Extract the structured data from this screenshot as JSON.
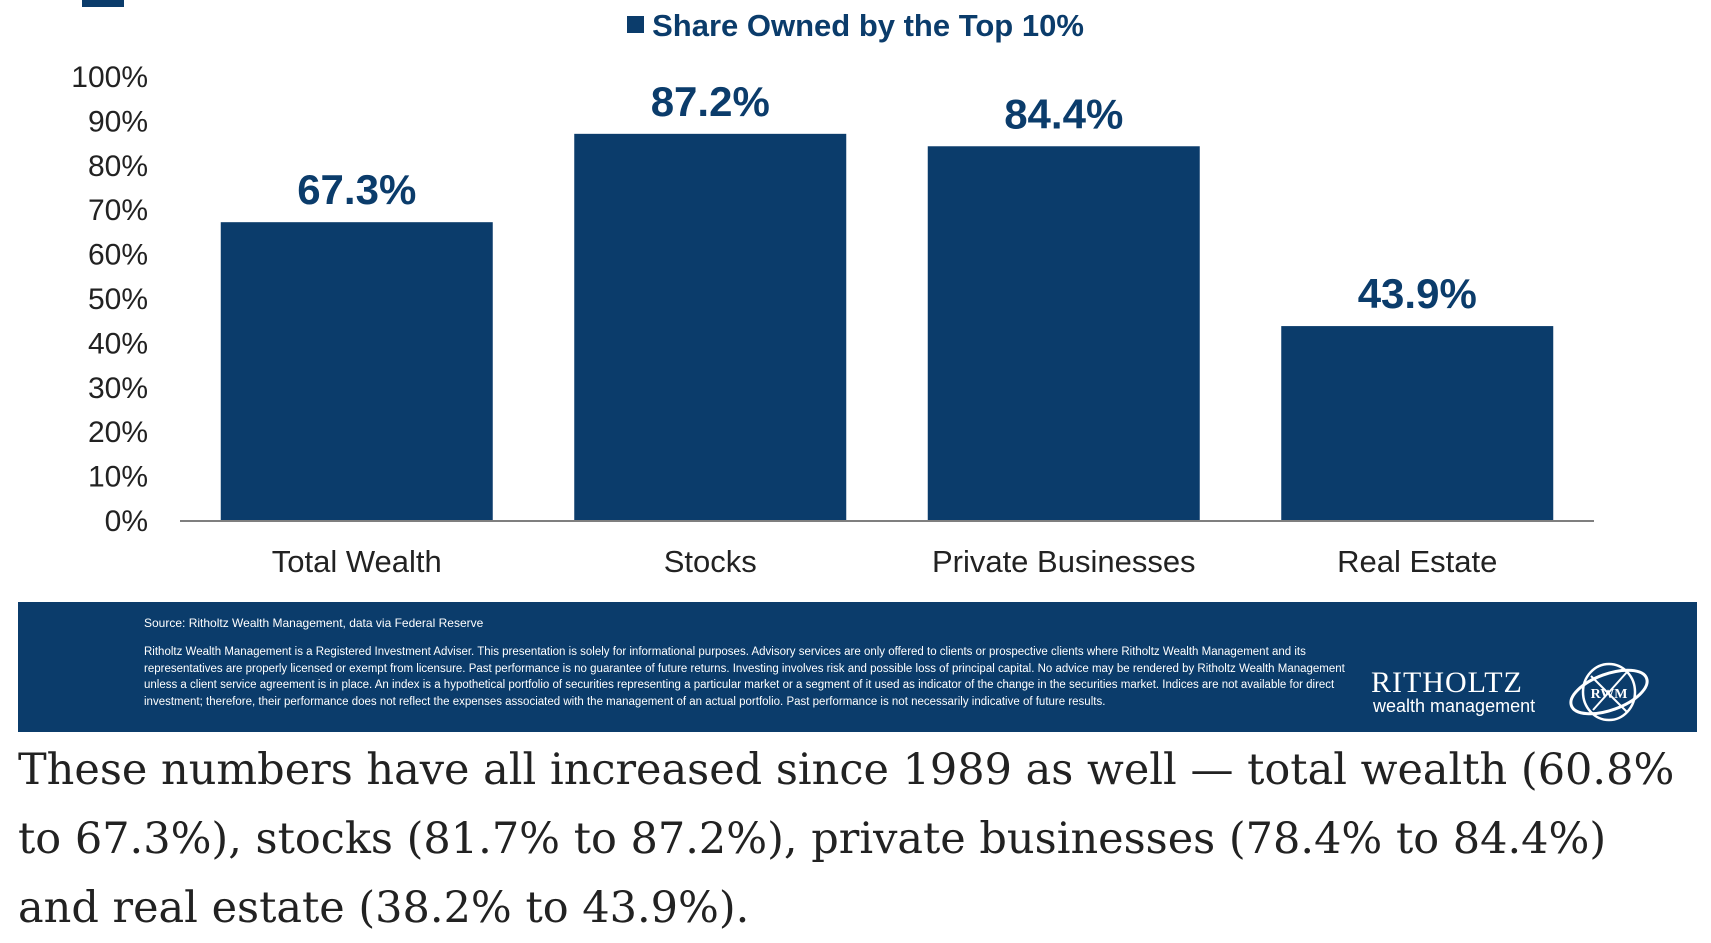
{
  "chart_data": {
    "type": "bar",
    "legend": "Share Owned by the Top 10%",
    "categories": [
      "Total Wealth",
      "Stocks",
      "Private Businesses",
      "Real Estate"
    ],
    "values": [
      67.3,
      87.2,
      84.4,
      43.9
    ],
    "value_labels": [
      "67.3%",
      "87.2%",
      "84.4%",
      "43.9%"
    ],
    "ylim": [
      0,
      100
    ],
    "yticks": [
      0,
      10,
      20,
      30,
      40,
      50,
      60,
      70,
      80,
      90,
      100
    ],
    "ytick_labels": [
      "0%",
      "10%",
      "20%",
      "30%",
      "40%",
      "50%",
      "60%",
      "70%",
      "80%",
      "90%",
      "100%"
    ],
    "xlabel": "",
    "ylabel": "",
    "grid": false,
    "legend_position": "top-center",
    "bar_color": "#0b3c6b"
  },
  "footer": {
    "source": "Source: Ritholtz Wealth Management, data via Federal Reserve",
    "disclaimer": "Ritholtz Wealth Management is a Registered Investment Adviser. This presentation is solely for informational purposes. Advisory services are only offered to clients or prospective clients where Ritholtz Wealth Management and its representatives are properly licensed or exempt from licensure. Past performance is no guarantee of future returns. Investing involves risk and possible loss of principal capital. No advice may be rendered by Ritholtz Wealth Management unless a client service agreement is in place. An index is a hypothetical portfolio of securities representing a particular market or a segment of it used as indicator of the change in the securities market. Indices are not available for direct investment; therefore, their performance does not reflect the expenses associated with the management of an actual portfolio. Past performance is not necessarily indicative of future results.",
    "brand_name": "RITHOLTZ",
    "brand_sub": "wealth management",
    "logo_text": "RWM"
  },
  "caption": "These numbers have all increased since 1989 as well — total wealth (60.8% to 67.3%), stocks (81.7% to 87.2%), private businesses (78.4% to 84.4%) and real estate (38.2% to 43.9%).",
  "colors": {
    "navy": "#0b3c6b",
    "axis": "#7f7f7f",
    "caption_text": "#222222"
  }
}
